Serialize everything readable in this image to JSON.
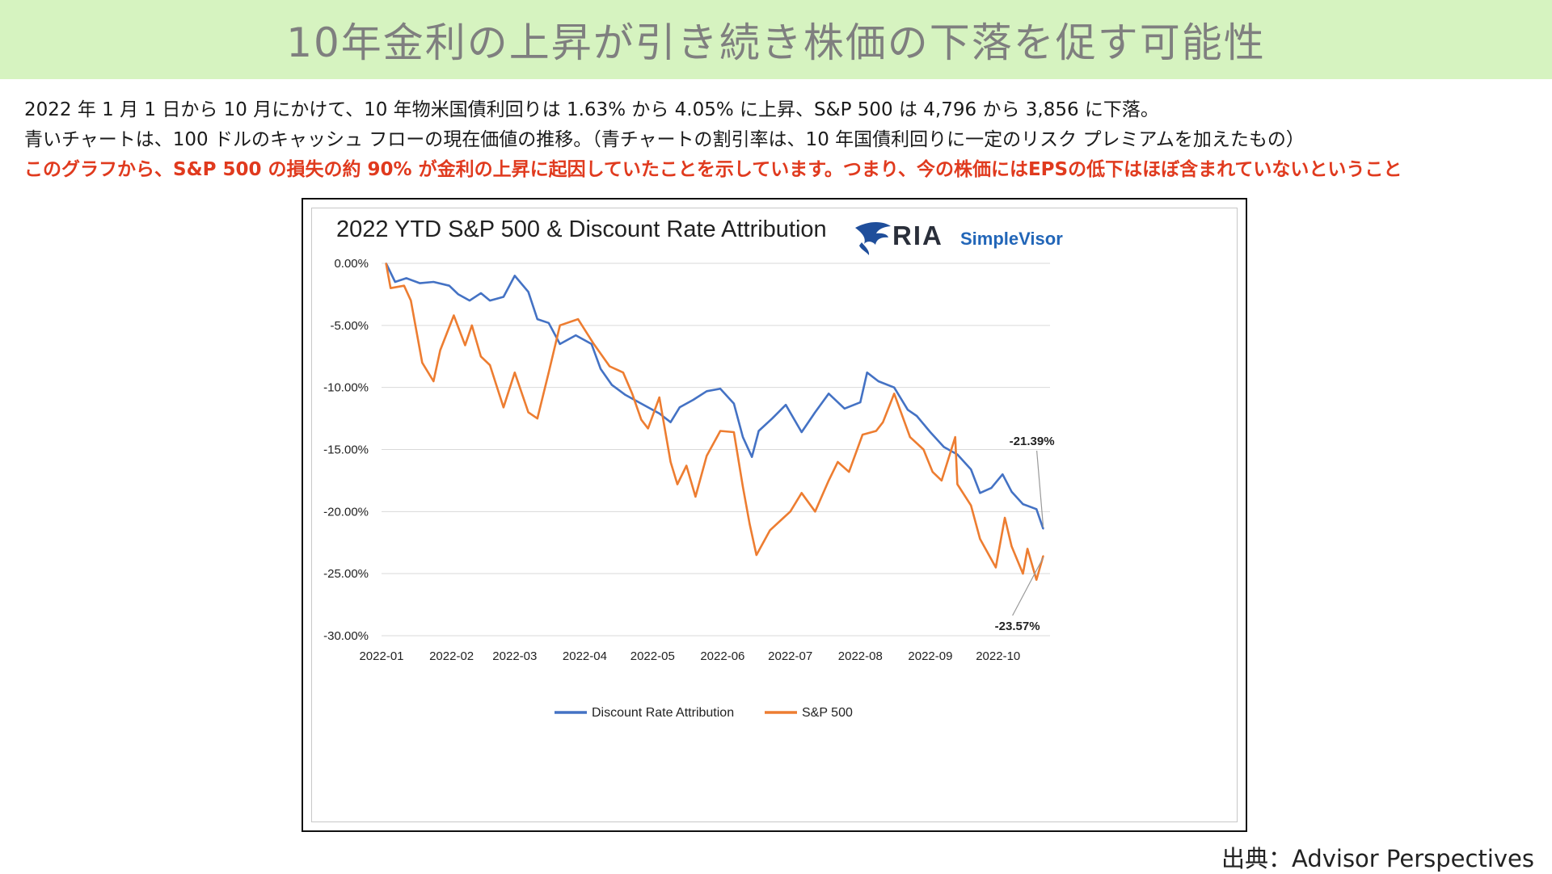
{
  "page": {
    "title": "10年金利の上昇が引き続き株価の下落を促す可能性",
    "desc_line1": "2022 年 1 月 1 日から 10 月にかけて、10 年物米国債利回りは 1.63% から 4.05% に上昇、S&P 500 は 4,796 から 3,856 に下落。",
    "desc_line2": "青いチャートは、100 ドルのキャッシュ フローの現在価値の推移。（青チャートの割引率は、10 年国債利回りに一定のリスク プレミアムを加えたもの）",
    "desc_line3": "このグラフから、S&P 500 の損失の約 90% が金利の上昇に起因していたことを示しています。つまり、今の株価にはEPSの低下はほぼ含まれていないということ",
    "source": "出典：Advisor  Perspectives"
  },
  "logo": {
    "brand": "RIA",
    "sub": "SimpleVisor"
  },
  "colors": {
    "blue": "#4472c4",
    "orange": "#ed7d31",
    "title_bg": "#d6f3c0",
    "red_text": "#e03a1e"
  },
  "chart_data": {
    "type": "line",
    "title": "2022 YTD S&P 500 & Discount Rate Attribution",
    "ylim": [
      -30,
      0
    ],
    "y_ticks": [
      "0.00%",
      "-5.00%",
      "-10.00%",
      "-15.00%",
      "-20.00%",
      "-25.00%",
      "-30.00%"
    ],
    "x_ticks": [
      "2022-01",
      "2022-02",
      "2022-03",
      "2022-04",
      "2022-05",
      "2022-06",
      "2022-07",
      "2022-08",
      "2022-09",
      "2022-10"
    ],
    "grid": true,
    "legend": "bottom",
    "annotations": [
      {
        "text": "-21.39%",
        "series": "Discount Rate Attribution"
      },
      {
        "text": "-23.57%",
        "series": "S&P 500"
      }
    ],
    "series": [
      {
        "name": "Discount Rate Attribution",
        "color": "#4472c4",
        "x": [
          "2022-01-03",
          "2022-01-07",
          "2022-01-12",
          "2022-01-18",
          "2022-01-24",
          "2022-01-31",
          "2022-02-04",
          "2022-02-09",
          "2022-02-14",
          "2022-02-18",
          "2022-02-24",
          "2022-03-01",
          "2022-03-07",
          "2022-03-11",
          "2022-03-16",
          "2022-03-21",
          "2022-03-28",
          "2022-04-04",
          "2022-04-08",
          "2022-04-13",
          "2022-04-19",
          "2022-04-25",
          "2022-04-29",
          "2022-05-04",
          "2022-05-09",
          "2022-05-13",
          "2022-05-19",
          "2022-05-25",
          "2022-05-31",
          "2022-06-06",
          "2022-06-10",
          "2022-06-14",
          "2022-06-17",
          "2022-06-23",
          "2022-06-29",
          "2022-07-06",
          "2022-07-12",
          "2022-07-18",
          "2022-07-25",
          "2022-08-01",
          "2022-08-04",
          "2022-08-09",
          "2022-08-16",
          "2022-08-22",
          "2022-08-26",
          "2022-09-01",
          "2022-09-07",
          "2022-09-13",
          "2022-09-19",
          "2022-09-23",
          "2022-09-28",
          "2022-10-03",
          "2022-10-07",
          "2022-10-12",
          "2022-10-18",
          "2022-10-21"
        ],
        "values": [
          0.0,
          -1.5,
          -1.2,
          -1.6,
          -1.5,
          -1.8,
          -2.5,
          -3.0,
          -2.4,
          -3.0,
          -2.7,
          -1.0,
          -2.3,
          -4.5,
          -4.8,
          -6.5,
          -5.8,
          -6.5,
          -8.5,
          -9.8,
          -10.6,
          -11.2,
          -11.6,
          -12.1,
          -12.8,
          -11.6,
          -11.0,
          -10.3,
          -10.1,
          -11.3,
          -14.0,
          -15.6,
          -13.5,
          -12.5,
          -11.4,
          -13.6,
          -12.0,
          -10.5,
          -11.7,
          -11.2,
          -8.8,
          -9.5,
          -10.0,
          -11.8,
          -12.3,
          -13.6,
          -14.8,
          -15.4,
          -16.6,
          -18.5,
          -18.1,
          -17.0,
          -18.4,
          -19.4,
          -19.8,
          -21.39
        ]
      },
      {
        "name": "S&P 500",
        "color": "#ed7d31",
        "x": [
          "2022-01-03",
          "2022-01-05",
          "2022-01-11",
          "2022-01-14",
          "2022-01-19",
          "2022-01-24",
          "2022-01-27",
          "2022-02-02",
          "2022-02-07",
          "2022-02-10",
          "2022-02-14",
          "2022-02-18",
          "2022-02-24",
          "2022-03-01",
          "2022-03-07",
          "2022-03-11",
          "2022-03-16",
          "2022-03-21",
          "2022-03-29",
          "2022-04-05",
          "2022-04-12",
          "2022-04-18",
          "2022-04-22",
          "2022-04-26",
          "2022-04-29",
          "2022-05-04",
          "2022-05-09",
          "2022-05-12",
          "2022-05-16",
          "2022-05-20",
          "2022-05-25",
          "2022-05-31",
          "2022-06-06",
          "2022-06-10",
          "2022-06-13",
          "2022-06-16",
          "2022-06-22",
          "2022-06-28",
          "2022-07-01",
          "2022-07-06",
          "2022-07-12",
          "2022-07-18",
          "2022-07-22",
          "2022-07-27",
          "2022-08-02",
          "2022-08-08",
          "2022-08-11",
          "2022-08-16",
          "2022-08-23",
          "2022-08-29",
          "2022-09-02",
          "2022-09-06",
          "2022-09-12",
          "2022-09-13",
          "2022-09-19",
          "2022-09-23",
          "2022-09-30",
          "2022-10-04",
          "2022-10-07",
          "2022-10-12",
          "2022-10-14",
          "2022-10-18",
          "2022-10-21"
        ],
        "values": [
          0.0,
          -2.0,
          -1.8,
          -3.0,
          -8.0,
          -9.5,
          -7.0,
          -4.2,
          -6.6,
          -5.0,
          -7.5,
          -8.2,
          -11.6,
          -8.8,
          -12.0,
          -12.5,
          -8.8,
          -5.0,
          -4.5,
          -6.5,
          -8.3,
          -8.8,
          -10.5,
          -12.6,
          -13.3,
          -10.8,
          -16.0,
          -17.8,
          -16.3,
          -18.8,
          -15.5,
          -13.5,
          -13.6,
          -18.0,
          -21.0,
          -23.5,
          -21.5,
          -20.5,
          -20.0,
          -18.5,
          -20.0,
          -17.5,
          -16.0,
          -16.8,
          -13.8,
          -13.5,
          -12.8,
          -10.5,
          -14.0,
          -15.0,
          -16.8,
          -17.5,
          -14.0,
          -17.8,
          -19.5,
          -22.2,
          -24.5,
          -20.5,
          -22.8,
          -25.0,
          -23.0,
          -25.5,
          -23.57
        ]
      }
    ]
  }
}
